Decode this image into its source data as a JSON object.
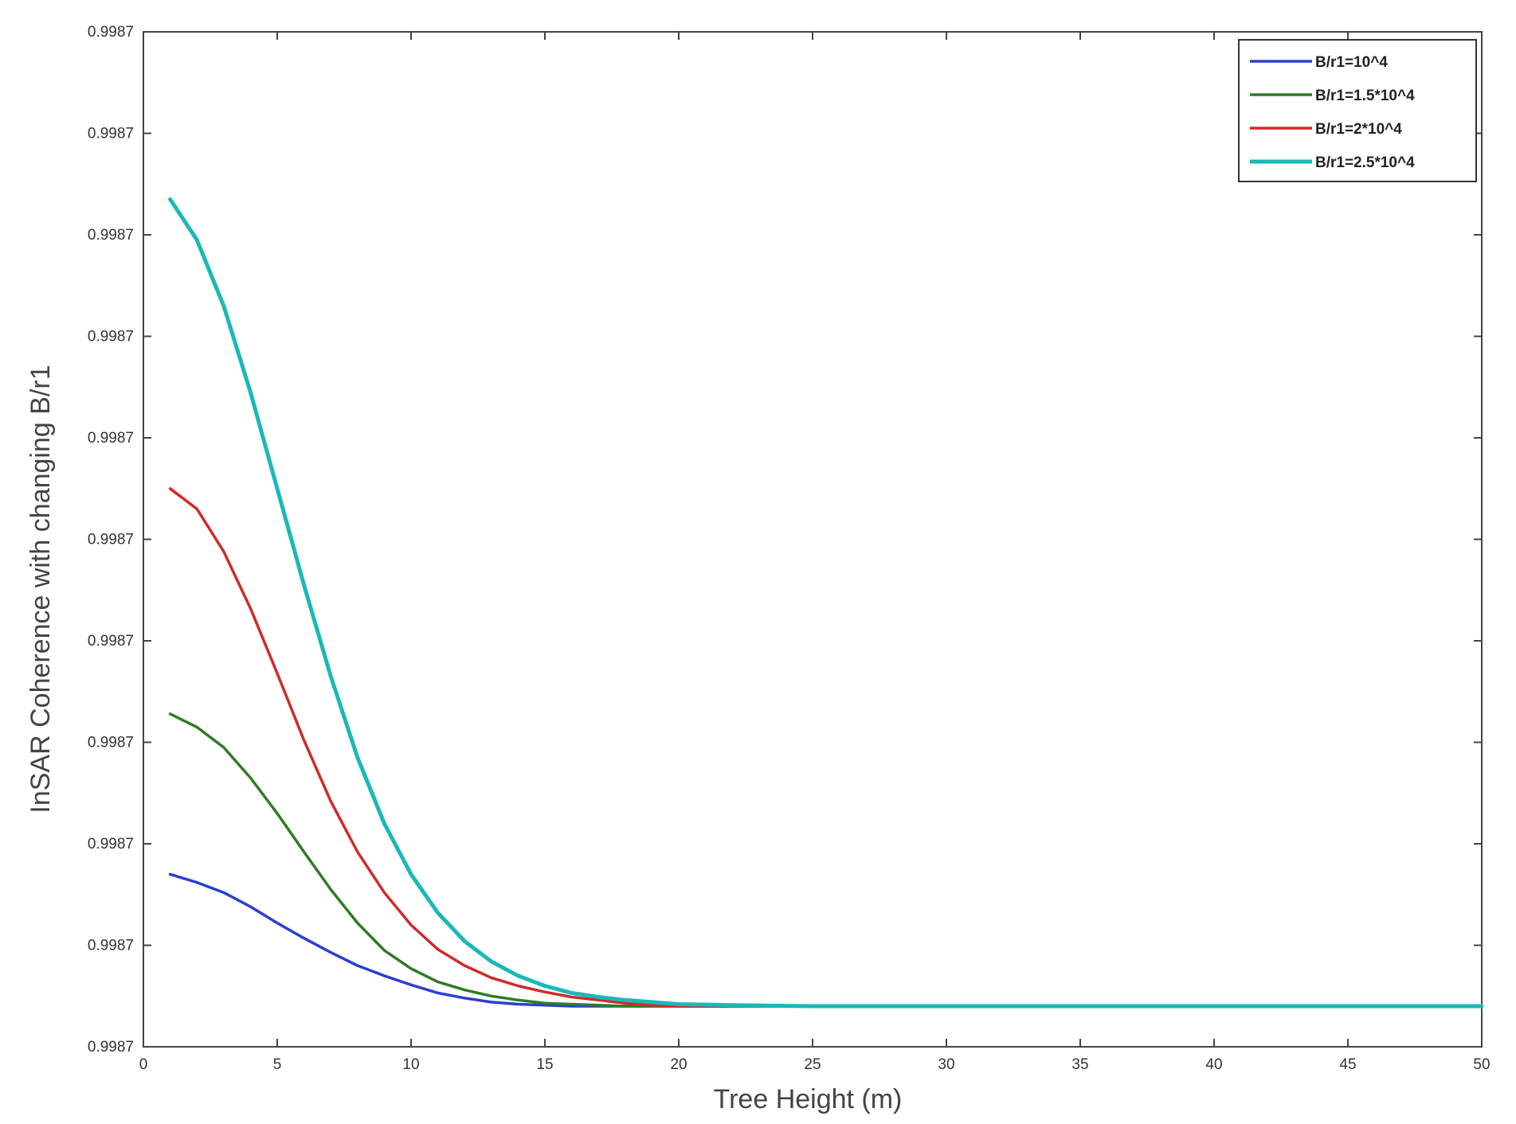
{
  "chart_data": {
    "type": "line",
    "title": "",
    "xlabel": "Tree Height (m)",
    "ylabel": "InSAR Coherence with changing B/r1",
    "xlim": [
      0,
      50
    ],
    "ylim": [
      0,
      10
    ],
    "x_ticks": [
      "0",
      "5",
      "10",
      "15",
      "20",
      "25",
      "30",
      "35",
      "40",
      "45",
      "50"
    ],
    "y_tick_labels": [
      "0.9987",
      "0.9987",
      "0.9987",
      "0.9987",
      "0.9987",
      "0.9987",
      "0.9987",
      "0.9987",
      "0.9987",
      "0.9987",
      "0.9987"
    ],
    "grid": false,
    "legend_position": "top-right",
    "x": [
      1,
      2,
      3,
      4,
      5,
      6,
      7,
      8,
      9,
      10,
      11,
      12,
      13,
      14,
      15,
      16,
      17,
      18,
      19,
      20,
      22,
      25,
      30,
      35,
      40,
      45,
      50
    ],
    "series": [
      {
        "name": "B/r1=10^4",
        "color": "#2a3fd0",
        "values": [
          1.7,
          1.62,
          1.52,
          1.38,
          1.22,
          1.07,
          0.93,
          0.8,
          0.7,
          0.61,
          0.53,
          0.48,
          0.44,
          0.42,
          0.41,
          0.4,
          0.4,
          0.4,
          0.4,
          0.4,
          0.4,
          0.4,
          0.4,
          0.4,
          0.4,
          0.4,
          0.4
        ]
      },
      {
        "name": "B/r1=1.5*10^4",
        "color": "#2e7d24",
        "values": [
          3.28,
          3.15,
          2.95,
          2.65,
          2.3,
          1.92,
          1.55,
          1.22,
          0.95,
          0.77,
          0.64,
          0.56,
          0.5,
          0.46,
          0.43,
          0.42,
          0.41,
          0.4,
          0.4,
          0.4,
          0.4,
          0.4,
          0.4,
          0.4,
          0.4,
          0.4,
          0.4
        ]
      },
      {
        "name": "B/r1=2*10^4",
        "color": "#d02a2a",
        "values": [
          5.5,
          5.3,
          4.88,
          4.32,
          3.68,
          3.02,
          2.42,
          1.92,
          1.52,
          1.2,
          0.96,
          0.8,
          0.68,
          0.6,
          0.54,
          0.49,
          0.46,
          0.43,
          0.41,
          0.4,
          0.4,
          0.4,
          0.4,
          0.4,
          0.4,
          0.4,
          0.4
        ]
      },
      {
        "name": "B/r1=2.5*10^4",
        "color": "#1bb8b8",
        "values": [
          8.35,
          7.95,
          7.3,
          6.45,
          5.5,
          4.55,
          3.65,
          2.85,
          2.2,
          1.7,
          1.32,
          1.04,
          0.84,
          0.7,
          0.6,
          0.53,
          0.49,
          0.46,
          0.44,
          0.42,
          0.41,
          0.4,
          0.4,
          0.4,
          0.4,
          0.4,
          0.4
        ]
      }
    ]
  }
}
